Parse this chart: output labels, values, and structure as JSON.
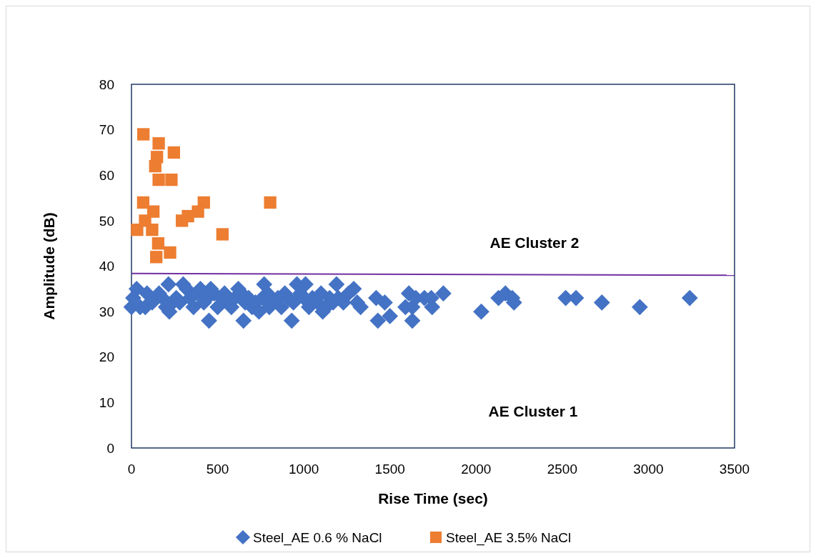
{
  "chart_data": {
    "type": "scatter",
    "xlabel": "Rise Time (sec)",
    "ylabel": "Amplitude (dB)",
    "xlim": [
      0,
      3500
    ],
    "xticks": [
      0,
      500,
      1000,
      1500,
      2000,
      2500,
      3000,
      3500
    ],
    "ylim": [
      0,
      80
    ],
    "yticks": [
      0,
      10,
      20,
      30,
      40,
      50,
      60,
      70,
      80
    ],
    "grid": false,
    "legend": "bottom",
    "annotations": [
      "AE Cluster 2",
      "AE Cluster 1"
    ],
    "series": [
      {
        "name": "Steel_AE  0.6 % NaCl",
        "color": "#4472c4",
        "marker": "diamond",
        "x": [
          0,
          10,
          30,
          50,
          80,
          90,
          120,
          160,
          180,
          200,
          215,
          220,
          240,
          260,
          280,
          300,
          320,
          340,
          360,
          380,
          400,
          420,
          440,
          450,
          460,
          480,
          500,
          520,
          540,
          560,
          580,
          600,
          620,
          640,
          650,
          660,
          680,
          700,
          720,
          740,
          760,
          770,
          790,
          800,
          820,
          850,
          870,
          890,
          910,
          930,
          940,
          960,
          980,
          1000,
          1010,
          1030,
          1050,
          1080,
          1100,
          1110,
          1130,
          1150,
          1170,
          1190,
          1200,
          1230,
          1260,
          1290,
          1310,
          1330,
          1420,
          1430,
          1470,
          1500,
          1590,
          1610,
          1630,
          1630,
          1650,
          1700,
          1740,
          1745,
          1810,
          2030,
          2130,
          2170,
          2210,
          2220,
          2520,
          2580,
          2730,
          2950,
          3240
        ],
        "values": [
          31,
          33,
          35,
          31,
          31,
          34,
          32,
          34,
          33,
          31,
          36,
          30,
          32,
          33,
          32,
          36,
          35,
          33,
          31,
          34,
          35,
          32,
          33,
          28,
          35,
          34,
          31,
          33,
          34,
          32,
          31,
          33,
          35,
          34,
          28,
          32,
          33,
          31,
          32,
          30,
          33,
          36,
          34,
          31,
          32,
          33,
          31,
          34,
          33,
          28,
          32,
          36,
          34,
          33,
          36,
          31,
          33,
          32,
          34,
          30,
          31,
          33,
          32,
          36,
          33,
          32,
          34,
          35,
          32,
          31,
          33,
          28,
          32,
          29,
          31,
          34,
          28,
          31,
          33,
          33,
          33,
          31,
          34,
          30,
          33,
          34,
          33,
          32,
          33,
          33,
          32,
          31,
          33
        ]
      },
      {
        "name": "Steel_AE 3.5% NaCl",
        "color": "#ed7d31",
        "marker": "square",
        "x": [
          69,
          158,
          246,
          148,
          138,
          158,
          232,
          68,
          420,
          805,
          386,
          328,
          127,
          293,
          528,
          33,
          120,
          155,
          224,
          144,
          79
        ],
        "values": [
          69,
          67,
          65,
          64,
          62,
          59,
          59,
          54,
          54,
          54,
          52,
          51,
          52,
          50,
          47,
          48,
          48,
          45,
          43,
          42,
          50
        ]
      },
      {
        "type": "line",
        "color": "#7030a0",
        "marker": "none",
        "x": [
          0,
          3500
        ],
        "values": [
          38.4,
          38
        ]
      }
    ]
  }
}
